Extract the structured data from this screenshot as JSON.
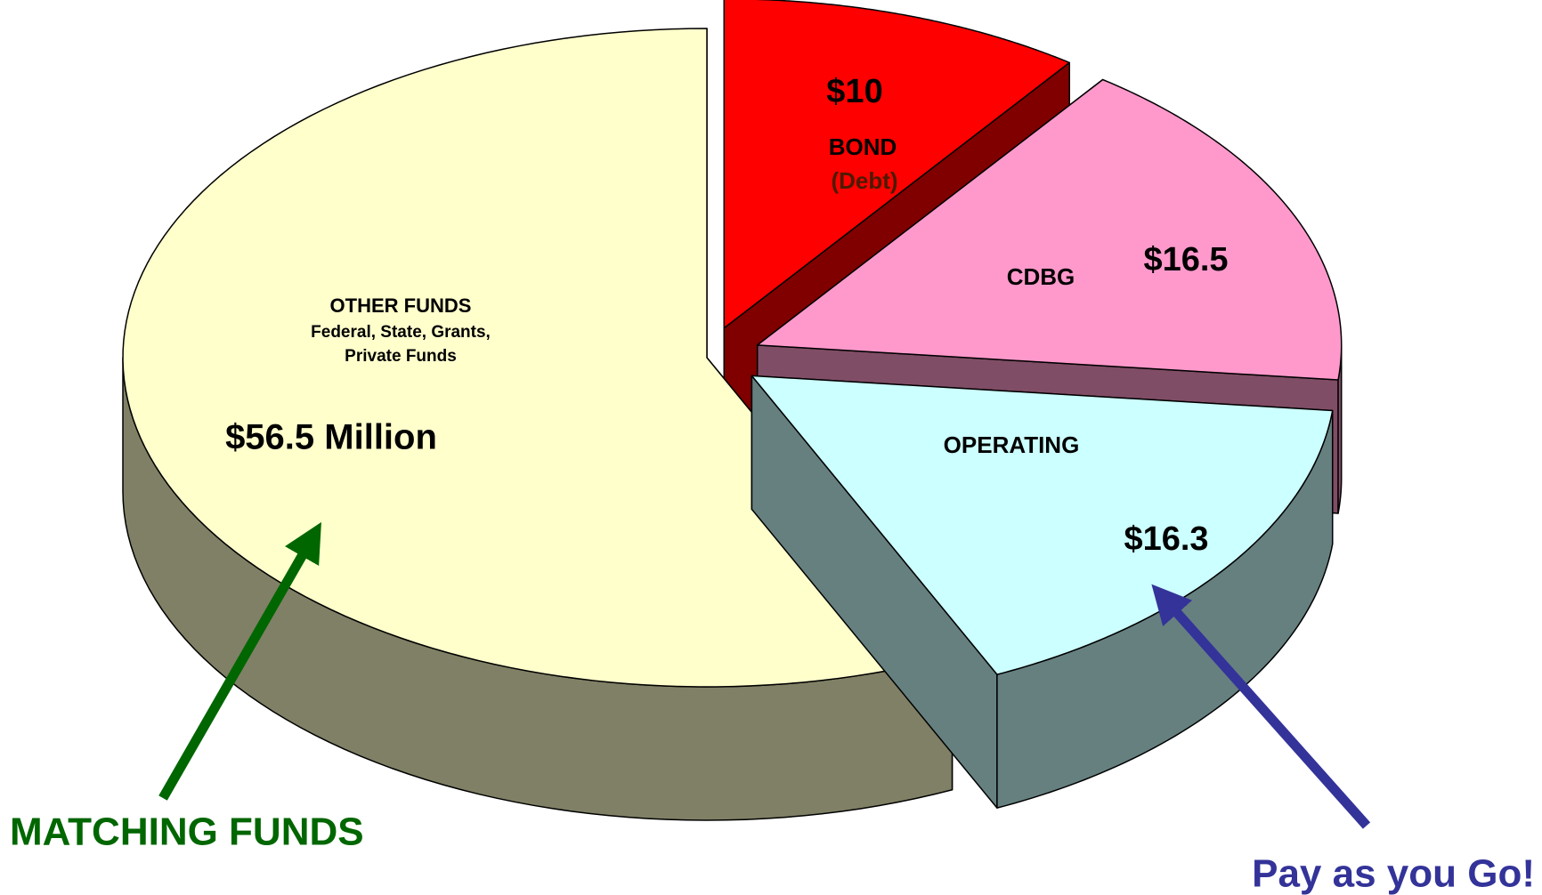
{
  "chart_data": {
    "type": "pie3d",
    "categories": [
      "BOND",
      "CDBG",
      "OPERATING",
      "OTHER FUNDS"
    ],
    "values": [
      10,
      16.5,
      16.3,
      56.5
    ],
    "value_labels": [
      "$10",
      "$16.5",
      "$16.3",
      "$56.5 Million"
    ],
    "colors": [
      "#ff0000",
      "#ff99cc",
      "#ccffff",
      "#ffffcc"
    ],
    "annotations": [
      "(Debt)",
      "Federal, State, Grants,",
      "Private Funds",
      "MATCHING FUNDS",
      "Pay as you Go!"
    ]
  }
}
